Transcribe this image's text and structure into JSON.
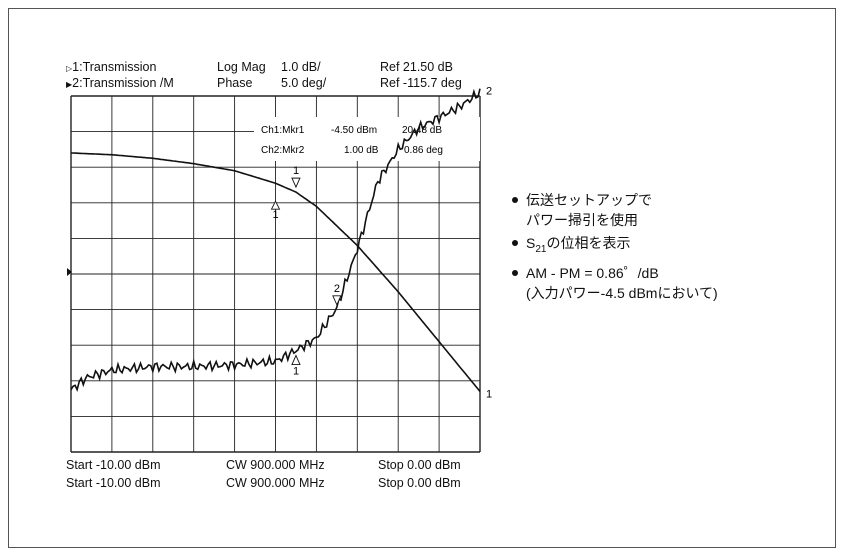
{
  "header": {
    "row1": {
      "trace": "1:Transmission",
      "format": "Log Mag",
      "scale": "1.0 dB/",
      "ref": "Ref  21.50 dB"
    },
    "row2": {
      "trace": "2:Transmission /M",
      "format": "Phase",
      "scale": "5.0 deg/",
      "ref": "Ref -115.7 deg"
    }
  },
  "marker_table": {
    "row1": {
      "name": "Ch1:Mkr1",
      "stim": "-4.50 dBm",
      "val": "20.48 dB"
    },
    "row2": {
      "name": "Ch2:Mkr2",
      "stim": "1.00 dB",
      "val": "0.86 deg"
    }
  },
  "footer": {
    "row1": {
      "start": "Start -10.00 dBm",
      "cw": "CW 900.000 MHz",
      "stop": "Stop  0.00 dBm"
    },
    "row2": {
      "start": "Start -10.00 dBm",
      "cw": "CW 900.000 MHz",
      "stop": "Stop  0.00 dBm"
    }
  },
  "notes": {
    "n1_line1": "伝送セットアップで",
    "n1_line2": "パワー掃引を使用",
    "n2_prefix": "S",
    "n2_sub": "21",
    "n2_suffix": "の位相を表示",
    "n3_line1": "AM - PM = 0.86゜/dB",
    "n3_line2": "(入力パワー-4.5 dBmにおいて)"
  },
  "chart_data": {
    "type": "line",
    "x_start": -10.0,
    "x_stop": 0.0,
    "x_unit": "dBm",
    "grid": true,
    "grid_divisions": [
      10,
      10
    ],
    "series": [
      {
        "name": "1",
        "x": [
          -10,
          -9,
          -8,
          -7,
          -6,
          -5,
          -4.5,
          -4,
          -3,
          -2,
          -1,
          0
        ],
        "y": [
          8.4,
          8.35,
          8.25,
          8.1,
          7.9,
          7.55,
          7.3,
          6.9,
          5.8,
          4.5,
          3.1,
          1.7
        ]
      },
      {
        "name": "2",
        "x": [
          -10,
          -9.6,
          -9,
          -8,
          -7,
          -6,
          -5,
          -4.5,
          -4,
          -3.5,
          -3,
          -2.5,
          -2,
          -1.5,
          -1,
          -0.5,
          0
        ],
        "y": [
          1.75,
          2.1,
          2.3,
          2.4,
          2.4,
          2.45,
          2.55,
          2.85,
          3.2,
          4.05,
          5.7,
          7.6,
          8.5,
          9.1,
          9.4,
          9.7,
          10.1
        ]
      }
    ],
    "markers": [
      {
        "label": "1",
        "trace": "1",
        "x": -4.5
      },
      {
        "label": "2",
        "trace": "2",
        "x": -3.5
      },
      {
        "label": "1",
        "trace": "2",
        "x": -4.5
      },
      {
        "label": "1",
        "trace": "1",
        "x": -5
      }
    ],
    "trace_end_labels": [
      "2",
      "1"
    ]
  }
}
